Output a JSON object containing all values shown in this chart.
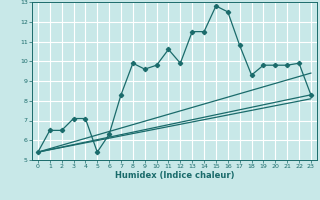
{
  "title": "",
  "xlabel": "Humidex (Indice chaleur)",
  "ylabel": "",
  "xlim": [
    -0.5,
    23.5
  ],
  "ylim": [
    5,
    13
  ],
  "yticks": [
    5,
    6,
    7,
    8,
    9,
    10,
    11,
    12,
    13
  ],
  "xticks": [
    0,
    1,
    2,
    3,
    4,
    5,
    6,
    7,
    8,
    9,
    10,
    11,
    12,
    13,
    14,
    15,
    16,
    17,
    18,
    19,
    20,
    21,
    22,
    23
  ],
  "bg_color": "#c8e8e8",
  "grid_color": "#ffffff",
  "line_color": "#1a6b6b",
  "line1": {
    "x": [
      0,
      1,
      2,
      3,
      4,
      5,
      6,
      7,
      8,
      9,
      10,
      11,
      12,
      13,
      14,
      15,
      16,
      17,
      18,
      19,
      20,
      21,
      22,
      23
    ],
    "y": [
      5.4,
      6.5,
      6.5,
      7.1,
      7.1,
      5.4,
      6.3,
      8.3,
      9.9,
      9.6,
      9.8,
      10.6,
      9.9,
      11.5,
      11.5,
      12.8,
      12.5,
      10.8,
      9.3,
      9.8,
      9.8,
      9.8,
      9.9,
      8.3
    ]
  },
  "line2": {
    "x": [
      0,
      23
    ],
    "y": [
      5.4,
      8.3
    ]
  },
  "line3": {
    "x": [
      0,
      23
    ],
    "y": [
      5.4,
      8.1
    ]
  },
  "line4": {
    "x": [
      0,
      23
    ],
    "y": [
      5.4,
      9.4
    ]
  }
}
